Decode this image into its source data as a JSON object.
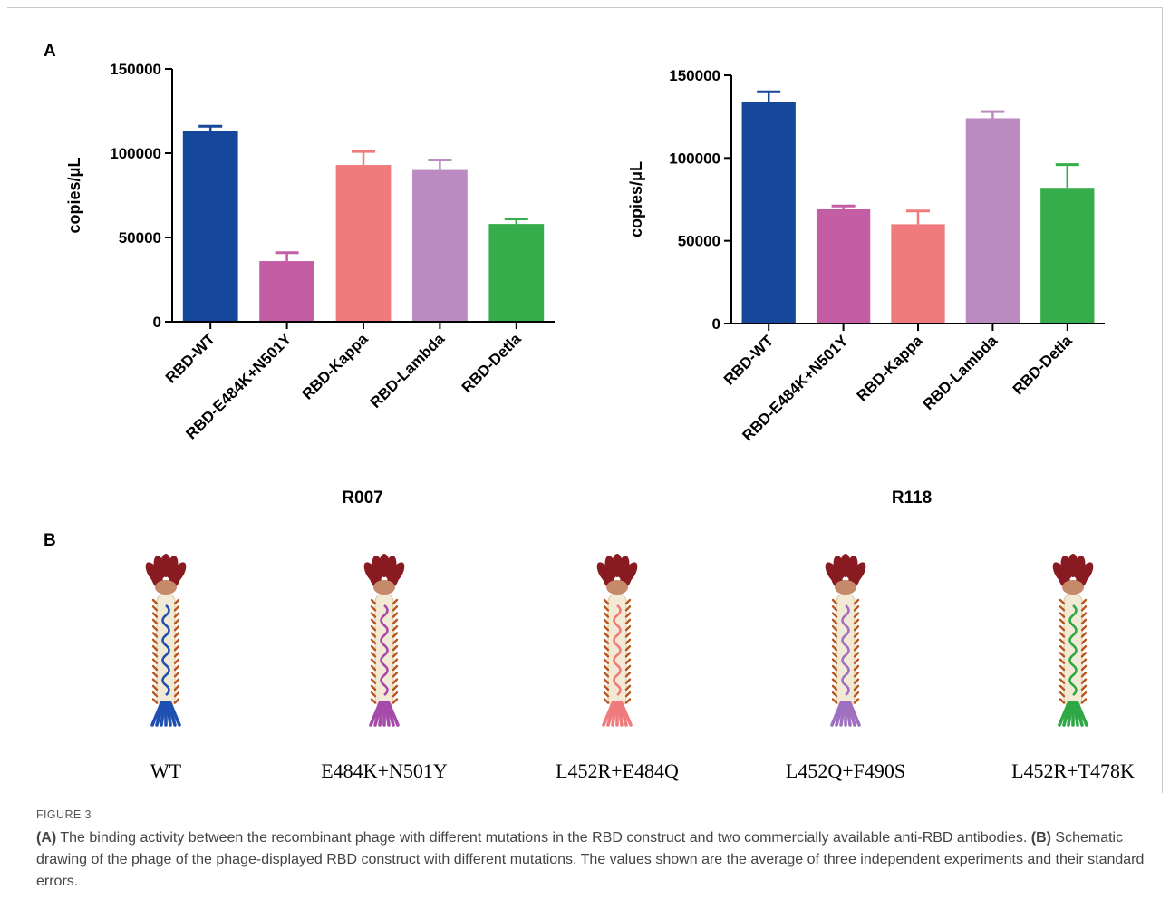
{
  "panels": {
    "a": "A",
    "b": "B"
  },
  "chart_data": [
    {
      "type": "bar",
      "title": "R007",
      "xlabel": "",
      "ylabel": "copies/μL",
      "ylim": [
        0,
        150000
      ],
      "yticks": [
        0,
        50000,
        100000,
        150000
      ],
      "grid": false,
      "categories": [
        "RBD-WT",
        "RBD-E484K+N501Y",
        "RBD-Kappa",
        "RBD-Lambda",
        "RBD-Detla"
      ],
      "values": [
        113000,
        36000,
        93000,
        90000,
        58000
      ],
      "errors": [
        3000,
        5000,
        8000,
        6000,
        3000
      ],
      "colors": [
        "#15479b",
        "#c35ea5",
        "#ef7b7c",
        "#bb8ac1",
        "#35ad4a"
      ]
    },
    {
      "type": "bar",
      "title": "R118",
      "xlabel": "",
      "ylabel": "copies/μL",
      "ylim": [
        0,
        150000
      ],
      "yticks": [
        0,
        50000,
        100000,
        150000
      ],
      "grid": false,
      "categories": [
        "RBD-WT",
        "RBD-E484K+N501Y",
        "RBD-Kappa",
        "RBD-Lambda",
        "RBD-Detla"
      ],
      "values": [
        134000,
        69000,
        60000,
        124000,
        82000
      ],
      "errors": [
        6000,
        2000,
        8000,
        4000,
        14000
      ],
      "colors": [
        "#15479b",
        "#c35ea5",
        "#ef7b7c",
        "#bb8ac1",
        "#35ad4a"
      ]
    }
  ],
  "phages": [
    {
      "label": "WT",
      "color": "#1f4fb0"
    },
    {
      "label": "E484K+N501Y",
      "color": "#a54aa8"
    },
    {
      "label": "L452R+E484Q",
      "color": "#ef7b7c"
    },
    {
      "label": "L452Q+F490S",
      "color": "#9f6fc0"
    },
    {
      "label": "L452R+T478K",
      "color": "#2ea844"
    }
  ],
  "figure_label": "FIGURE 3",
  "caption": {
    "a_tag": "(A)",
    "a_text": " The binding activity between the recombinant phage with different mutations in the RBD construct and two commercially available anti-RBD antibodies. ",
    "b_tag": "(B)",
    "b_text": " Schematic drawing of the phage of the phage-displayed RBD construct with different mutations. The values shown are the average of three independent experiments and their standard errors."
  }
}
